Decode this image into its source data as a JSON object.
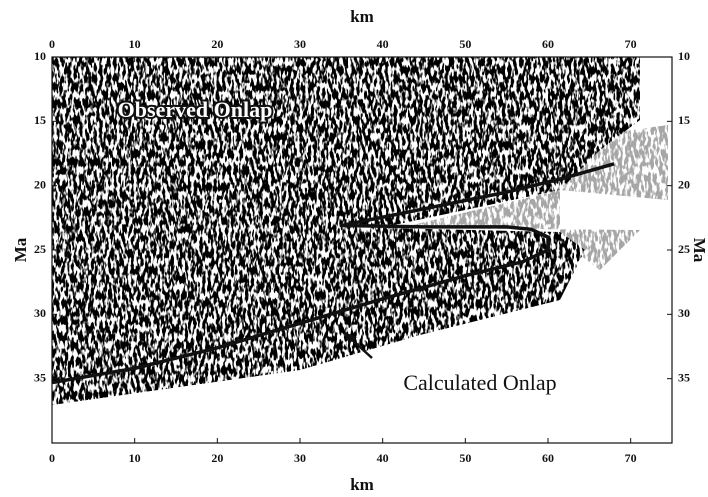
{
  "chart_data": {
    "type": "line",
    "x_label": "km",
    "y_label": "Ma",
    "xlim": [
      0,
      75
    ],
    "xticks": [
      0,
      10,
      20,
      30,
      40,
      50,
      60,
      70
    ],
    "ylim": [
      10,
      40
    ],
    "yticks": [
      10,
      15,
      20,
      25,
      30,
      35
    ],
    "y_inverted": true,
    "annotations": [
      "Observed Onlap",
      "Calculated Onlap"
    ],
    "series": [
      {
        "name": "Calculated Onlap",
        "color": "#111111",
        "x": [
          0,
          10,
          20,
          30,
          40,
          50,
          57,
          60,
          60,
          58,
          55,
          45,
          35,
          45,
          55,
          62,
          68
        ],
        "values": [
          35.3,
          34.2,
          32.6,
          30.7,
          28.8,
          27.0,
          25.9,
          25.0,
          24.0,
          23.4,
          23.2,
          23.2,
          23.1,
          21.8,
          20.5,
          19.4,
          18.3
        ]
      }
    ]
  }
}
